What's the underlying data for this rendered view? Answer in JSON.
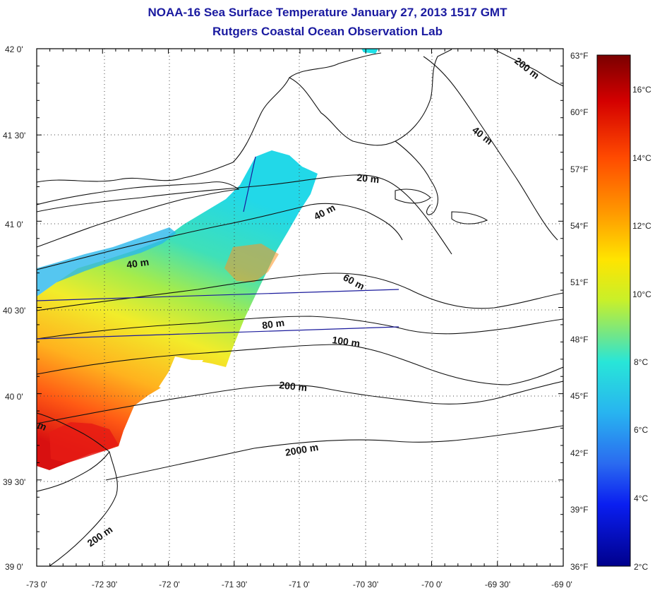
{
  "title": "NOAA-16 Sea Surface Temperature January 27, 2013 1517 GMT",
  "subtitle": "Rutgers Coastal Ocean Observation Lab",
  "lat_labels": [
    "42 0'",
    "41 30'",
    "41 0'",
    "40 30'",
    "40 0'",
    "39 30'",
    "39 0'"
  ],
  "lon_labels": [
    "-73 0'",
    "-72 30'",
    "-72 0'",
    "-71 30'",
    "-71 0'",
    "-70 30'",
    "-70 0'",
    "-69 30'",
    "-69 0'"
  ],
  "depth_labels": [
    "200 m",
    "40 m",
    "20 m",
    "40 m",
    "40 m",
    "60 m",
    "80 m",
    "100 m",
    "200 m",
    "2000 m",
    "200 m",
    "m"
  ],
  "colorbar": {
    "f_labels": [
      "63°F",
      "60°F",
      "57°F",
      "54°F",
      "51°F",
      "48°F",
      "45°F",
      "42°F",
      "39°F",
      "36°F"
    ],
    "c_labels": [
      "16°C",
      "14°C",
      "12°C",
      "10°C",
      "8°C",
      "6°C",
      "4°C",
      "2°C"
    ],
    "stops": [
      "#7a0000",
      "#d40000",
      "#ff4a00",
      "#ff9a00",
      "#ffe400",
      "#c8f02a",
      "#6ee68c",
      "#28e6d8",
      "#28b4f0",
      "#2a6af0",
      "#0a1ef0",
      "#00008c"
    ]
  }
}
